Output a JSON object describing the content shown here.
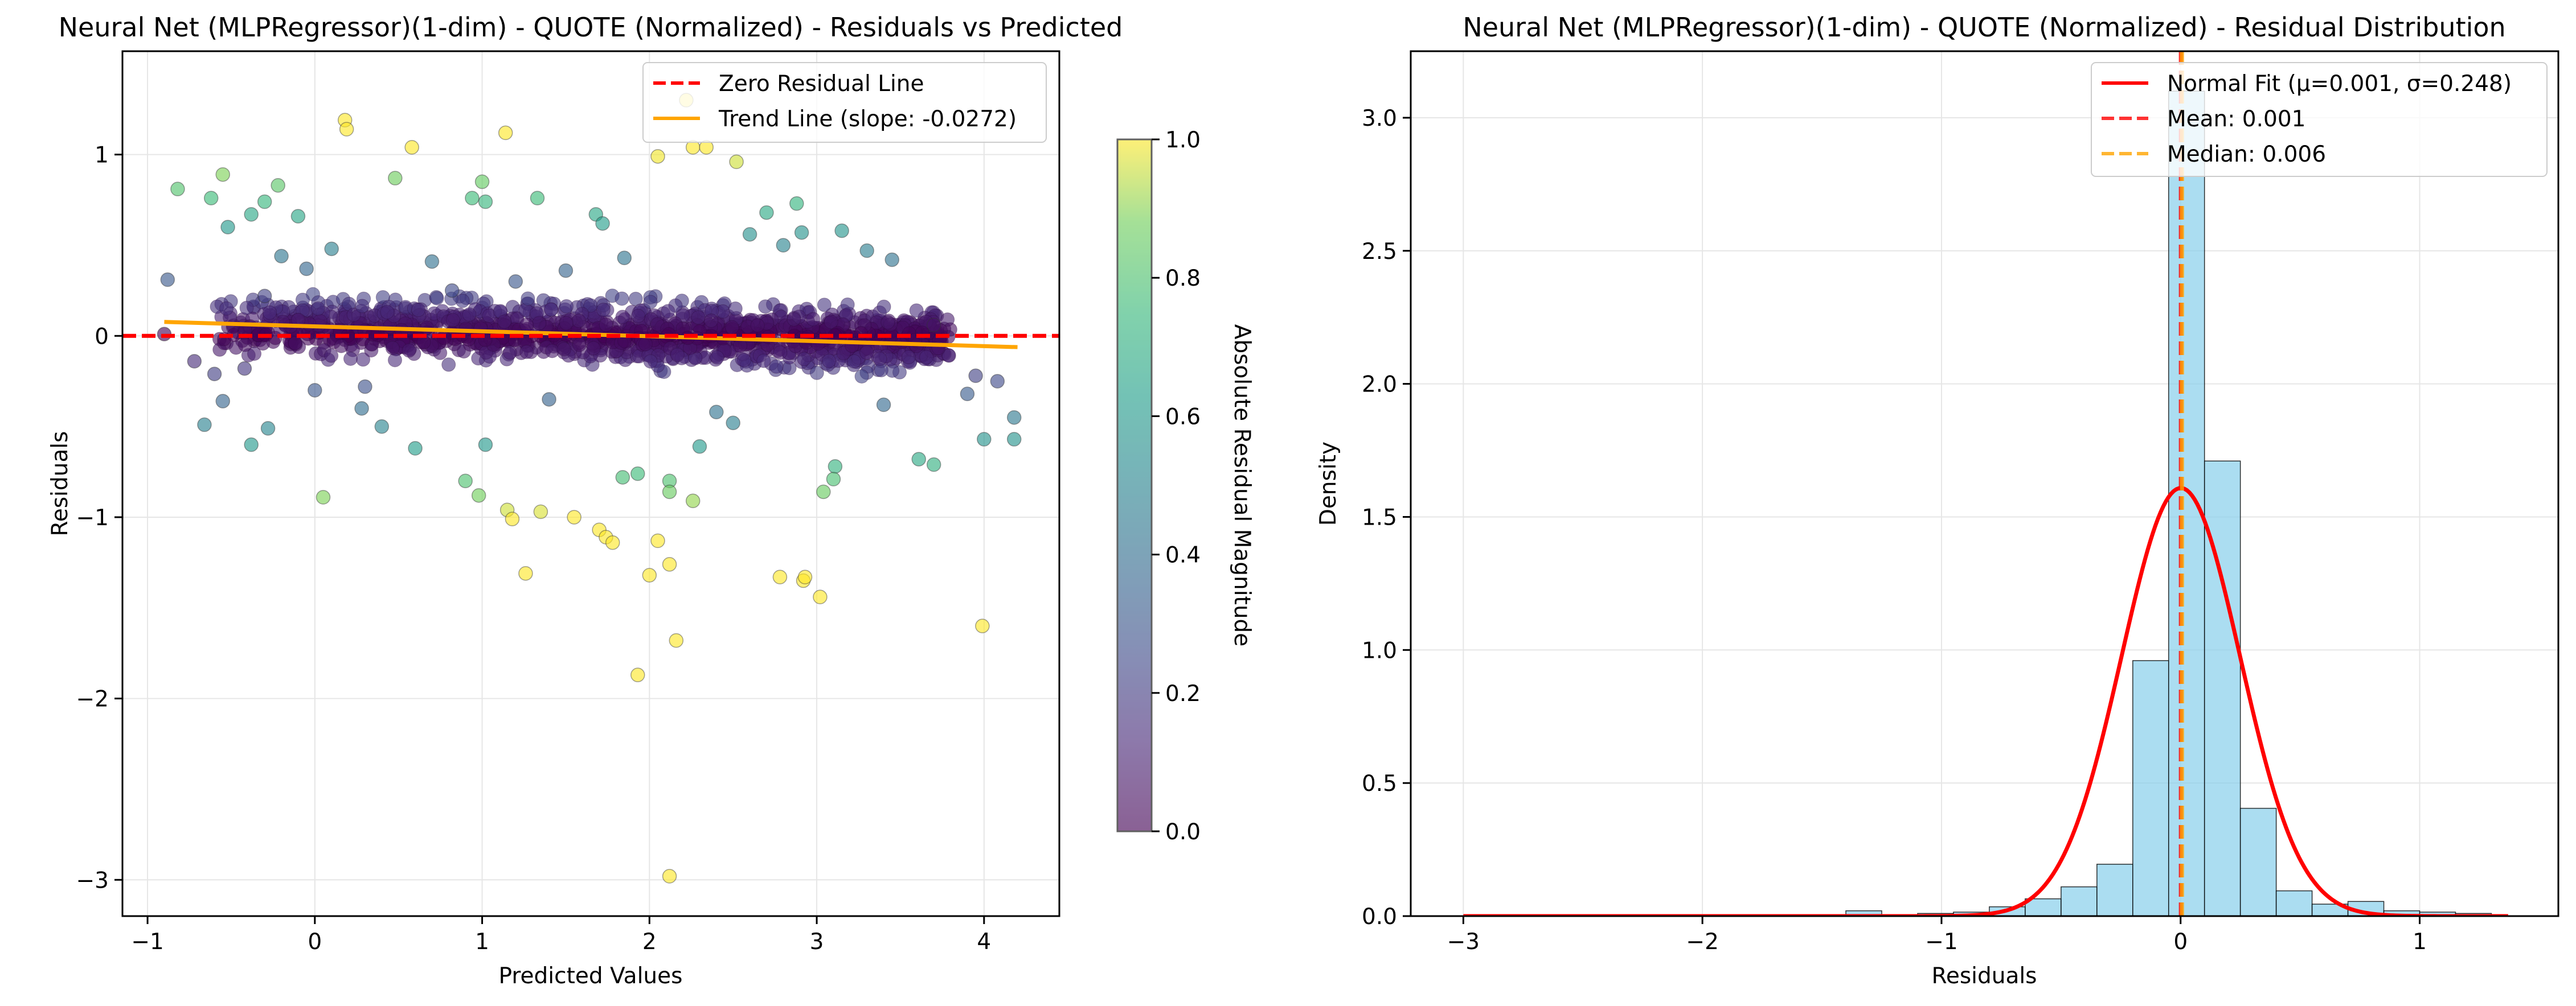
{
  "chart_data": [
    {
      "type": "scatter",
      "title": "Neural Net (MLPRegressor)(1-dim) - QUOTE (Normalized) - Residuals vs Predicted",
      "xlabel": "Predicted Values",
      "ylabel": "Residuals",
      "xlim": [
        -1.15,
        4.45
      ],
      "ylim": [
        -3.2,
        1.57
      ],
      "xticks": [
        -1,
        0,
        1,
        2,
        3,
        4
      ],
      "yticks": [
        -3,
        -2,
        -1,
        0,
        1
      ],
      "grid": true,
      "colormap": "viridis",
      "colorbar": {
        "label": "Absolute Residual Magnitude",
        "range": [
          0,
          1
        ],
        "ticks": [
          0.0,
          0.2,
          0.4,
          0.6,
          0.8,
          1.0
        ]
      },
      "legend_position": "top-right",
      "legend": [
        {
          "label": "Zero Residual Line",
          "color": "#ff0000",
          "style": "dashed"
        },
        {
          "label": "Trend Line (slope: -0.0272)",
          "color": "#ffa500",
          "style": "solid"
        }
      ],
      "lines": {
        "zero_residual": {
          "y": 0
        },
        "trend": {
          "x": [
            -0.9,
            4.2
          ],
          "y": [
            0.077,
            -0.062
          ],
          "slope": -0.0272
        }
      },
      "points": [
        [
          -0.88,
          0.31
        ],
        [
          -0.9,
          0.01
        ],
        [
          -0.82,
          0.81
        ],
        [
          -0.62,
          0.76
        ],
        [
          -0.55,
          0.89
        ],
        [
          -0.52,
          0.6
        ],
        [
          -0.38,
          0.67
        ],
        [
          -0.3,
          0.74
        ],
        [
          -0.22,
          0.83
        ],
        [
          -0.1,
          0.66
        ],
        [
          -0.2,
          0.44
        ],
        [
          -0.05,
          0.37
        ],
        [
          0.18,
          1.19
        ],
        [
          0.19,
          1.14
        ],
        [
          0.48,
          0.87
        ],
        [
          0.58,
          1.04
        ],
        [
          1.0,
          0.85
        ],
        [
          0.94,
          0.76
        ],
        [
          1.02,
          0.74
        ],
        [
          1.14,
          1.12
        ],
        [
          1.33,
          0.76
        ],
        [
          1.68,
          0.67
        ],
        [
          1.72,
          0.62
        ],
        [
          1.85,
          0.43
        ],
        [
          2.05,
          0.99
        ],
        [
          2.22,
          1.3
        ],
        [
          2.26,
          1.04
        ],
        [
          2.34,
          1.04
        ],
        [
          2.52,
          0.96
        ],
        [
          2.7,
          0.68
        ],
        [
          2.88,
          0.73
        ],
        [
          2.91,
          0.57
        ],
        [
          3.15,
          0.58
        ],
        [
          3.45,
          0.42
        ],
        [
          3.7,
          0.06
        ],
        [
          3.95,
          -0.22
        ],
        [
          4.18,
          -0.45
        ],
        [
          4.0,
          -0.57
        ],
        [
          4.18,
          -0.57
        ],
        [
          3.61,
          -0.68
        ],
        [
          3.7,
          -0.71
        ],
        [
          3.11,
          -0.72
        ],
        [
          3.1,
          -0.79
        ],
        [
          3.04,
          -0.86
        ],
        [
          2.5,
          -0.48
        ],
        [
          2.3,
          -0.61
        ],
        [
          2.12,
          -0.8
        ],
        [
          2.12,
          -0.86
        ],
        [
          2.26,
          -0.91
        ],
        [
          1.84,
          -0.78
        ],
        [
          1.93,
          -0.76
        ],
        [
          1.15,
          -0.96
        ],
        [
          1.18,
          -1.01
        ],
        [
          1.35,
          -0.97
        ],
        [
          1.55,
          -1.0
        ],
        [
          1.7,
          -1.07
        ],
        [
          1.74,
          -1.11
        ],
        [
          1.78,
          -1.14
        ],
        [
          1.26,
          -1.31
        ],
        [
          2.05,
          -1.13
        ],
        [
          2.0,
          -1.32
        ],
        [
          2.12,
          -1.26
        ],
        [
          2.16,
          -1.68
        ],
        [
          1.93,
          -1.87
        ],
        [
          2.78,
          -1.33
        ],
        [
          2.92,
          -1.35
        ],
        [
          2.93,
          -1.33
        ],
        [
          3.02,
          -1.44
        ],
        [
          3.99,
          -1.6
        ],
        [
          2.12,
          -2.98
        ],
        [
          0.9,
          -0.8
        ],
        [
          0.98,
          -0.88
        ],
        [
          0.05,
          -0.89
        ],
        [
          0.6,
          -0.62
        ],
        [
          -0.28,
          -0.51
        ],
        [
          -0.66,
          -0.49
        ],
        [
          -0.38,
          -0.6
        ],
        [
          0.4,
          -0.5
        ],
        [
          0.0,
          -0.3
        ],
        [
          0.3,
          -0.28
        ],
        [
          -0.42,
          -0.18
        ],
        [
          -0.55,
          -0.36
        ],
        [
          1.02,
          -0.6
        ],
        [
          0.28,
          -0.4
        ],
        [
          0.82,
          0.25
        ],
        [
          1.2,
          0.3
        ],
        [
          1.5,
          0.36
        ],
        [
          2.6,
          0.56
        ],
        [
          2.8,
          0.5
        ],
        [
          3.3,
          0.47
        ],
        [
          -0.6,
          -0.21
        ],
        [
          -0.72,
          -0.14
        ],
        [
          -0.3,
          0.22
        ],
        [
          0.1,
          0.48
        ],
        [
          0.7,
          0.41
        ],
        [
          1.4,
          -0.35
        ],
        [
          2.4,
          -0.42
        ],
        [
          3.4,
          -0.38
        ],
        [
          3.9,
          -0.32
        ],
        [
          4.08,
          -0.25
        ]
      ],
      "dense_band": {
        "x_range": [
          -0.6,
          3.8
        ],
        "y_center": 0.02,
        "note": "dense cluster of dark points around zero residual"
      }
    },
    {
      "type": "histogram",
      "title": "Neural Net (MLPRegressor)(1-dim) - QUOTE (Normalized) - Residual Distribution",
      "xlabel": "Residuals",
      "ylabel": "Density",
      "xlim": [
        -3.22,
        1.58
      ],
      "ylim": [
        0,
        3.25
      ],
      "xticks": [
        -3,
        -2,
        -1,
        0,
        1
      ],
      "yticks": [
        0.0,
        0.5,
        1.0,
        1.5,
        2.0,
        2.5,
        3.0
      ],
      "grid": true,
      "legend_position": "top-right",
      "legend": [
        {
          "label": "Normal Fit (μ=0.001, σ=0.248)",
          "color": "#ff0000",
          "style": "solid"
        },
        {
          "label": "Mean: 0.001",
          "color": "#ff0000",
          "style": "dashed"
        },
        {
          "label": "Median: 0.006",
          "color": "#ffa500",
          "style": "dashed"
        }
      ],
      "bin_edges": [
        -1.4,
        -1.25,
        -1.1,
        -0.95,
        -0.8,
        -0.65,
        -0.5,
        -0.35,
        -0.2,
        -0.05,
        0.1,
        0.25,
        0.4,
        0.55,
        0.7,
        0.85,
        1.0,
        1.15,
        1.3
      ],
      "densities": [
        0.02,
        0.005,
        0.01,
        0.015,
        0.035,
        0.065,
        0.11,
        0.195,
        0.96,
        3.1,
        1.71,
        0.405,
        0.095,
        0.045,
        0.055,
        0.02,
        0.015,
        0.01
      ],
      "bar_color": "#87ceeb",
      "normal_fit": {
        "mu": 0.001,
        "sigma": 0.248,
        "x_range": [
          -3.0,
          1.37
        ]
      },
      "mean": 0.001,
      "median": 0.006
    }
  ]
}
